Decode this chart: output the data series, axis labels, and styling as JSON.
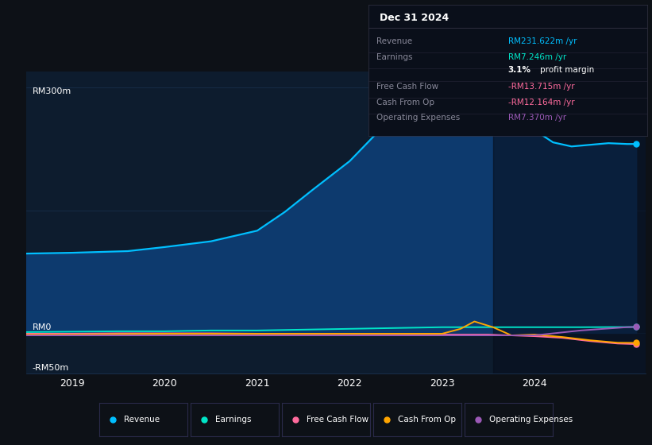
{
  "bg_color": "#0d1117",
  "chart_bg": "#0d1c2e",
  "grid_color": "#1e3a5f",
  "ylim": [
    -50,
    320
  ],
  "xtick_years": [
    2019,
    2020,
    2021,
    2022,
    2023,
    2024
  ],
  "xlim": [
    2018.5,
    2025.2
  ],
  "revenue": {
    "x": [
      2018.5,
      2019.0,
      2019.3,
      2019.6,
      2020.0,
      2020.5,
      2021.0,
      2021.3,
      2021.6,
      2022.0,
      2022.3,
      2022.6,
      2023.0,
      2023.2,
      2023.4,
      2023.7,
      2024.0,
      2024.2,
      2024.4,
      2024.6,
      2024.8,
      2025.0,
      2025.1
    ],
    "y": [
      97,
      98,
      99,
      100,
      105,
      112,
      125,
      148,
      175,
      210,
      245,
      268,
      282,
      287,
      288,
      278,
      248,
      233,
      228,
      230,
      232,
      231,
      231
    ],
    "color": "#00bfff",
    "fill_color": "#0d3a6e",
    "label": "Revenue"
  },
  "earnings": {
    "x": [
      2018.5,
      2019.0,
      2019.5,
      2020.0,
      2020.5,
      2021.0,
      2021.5,
      2022.0,
      2022.5,
      2023.0,
      2023.5,
      2024.0,
      2024.5,
      2025.0,
      2025.1
    ],
    "y": [
      1,
      1.5,
      2,
      2,
      3,
      3,
      4,
      5,
      6,
      7,
      7,
      7,
      7,
      7.2,
      7.246
    ],
    "color": "#00e5c8",
    "label": "Earnings"
  },
  "free_cash_flow": {
    "x": [
      2018.5,
      2019.0,
      2019.5,
      2020.0,
      2020.5,
      2021.0,
      2021.5,
      2022.0,
      2022.5,
      2023.0,
      2023.5,
      2024.0,
      2024.3,
      2024.6,
      2024.9,
      2025.1
    ],
    "y": [
      -1,
      -1,
      -0.5,
      -0.5,
      -0.5,
      -1,
      -1,
      -1,
      -1.5,
      -2,
      -2,
      -4,
      -6,
      -10,
      -13,
      -13.715
    ],
    "color": "#ff6b9d",
    "label": "Free Cash Flow"
  },
  "cash_from_op": {
    "x": [
      2018.5,
      2019.0,
      2019.5,
      2020.0,
      2020.5,
      2021.0,
      2021.5,
      2022.0,
      2022.5,
      2023.0,
      2023.2,
      2023.35,
      2023.55,
      2023.75,
      2024.0,
      2024.3,
      2024.6,
      2024.9,
      2025.1
    ],
    "y": [
      -2,
      -2,
      -1.5,
      -1,
      -1,
      -1,
      -1,
      -1,
      -1,
      -1,
      5,
      14,
      7,
      -3,
      -2,
      -5,
      -9,
      -12,
      -12.164
    ],
    "color": "#ffa500",
    "label": "Cash From Op"
  },
  "operating_expenses": {
    "x": [
      2018.5,
      2019.0,
      2019.5,
      2020.0,
      2020.5,
      2021.0,
      2021.5,
      2022.0,
      2022.5,
      2023.0,
      2023.5,
      2024.0,
      2024.5,
      2025.0,
      2025.1
    ],
    "y": [
      -3,
      -3,
      -3,
      -3,
      -3,
      -3,
      -3,
      -3,
      -3,
      -3,
      -3,
      -3,
      3,
      7,
      7.37
    ],
    "color": "#9b59b6",
    "label": "Operating Expenses"
  },
  "overlay_x_start": 2023.55,
  "info_box": {
    "title": "Dec 31 2024",
    "rows": [
      {
        "label": "Revenue",
        "value": "RM231.622m /yr",
        "value_color": "#00bfff"
      },
      {
        "label": "Earnings",
        "value": "RM7.246m /yr",
        "value_color": "#00e5c8"
      },
      {
        "label": "",
        "value": "3.1% profit margin",
        "value_color": "#ffffff",
        "bold_part": "3.1%"
      },
      {
        "label": "Free Cash Flow",
        "value": "-RM13.715m /yr",
        "value_color": "#ff6b9d"
      },
      {
        "label": "Cash From Op",
        "value": "-RM12.164m /yr",
        "value_color": "#ff6b9d"
      },
      {
        "label": "Operating Expenses",
        "value": "RM7.370m /yr",
        "value_color": "#9b59b6"
      }
    ]
  },
  "legend": [
    {
      "label": "Revenue",
      "color": "#00bfff"
    },
    {
      "label": "Earnings",
      "color": "#00e5c8"
    },
    {
      "label": "Free Cash Flow",
      "color": "#ff6b9d"
    },
    {
      "label": "Cash From Op",
      "color": "#ffa500"
    },
    {
      "label": "Operating Expenses",
      "color": "#9b59b6"
    }
  ]
}
